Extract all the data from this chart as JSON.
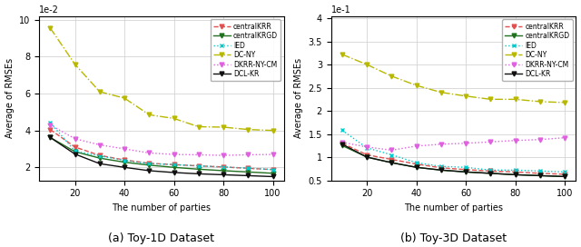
{
  "x": [
    10,
    20,
    30,
    40,
    50,
    60,
    70,
    80,
    90,
    100
  ],
  "left": {
    "caption": "(a) Toy-1D Dataset",
    "ylabel": "Average of RMSEs",
    "xlabel": "The number of parties",
    "scale_exp": -2,
    "ylim": [
      1.3,
      10.2
    ],
    "yticks": [
      2,
      4,
      6,
      8,
      10
    ],
    "series": {
      "centralKRR": {
        "color": "#e05050",
        "linestyle": "--",
        "marker": "v",
        "values": [
          4.05,
          3.1,
          2.65,
          2.4,
          2.22,
          2.15,
          2.08,
          2.02,
          1.95,
          1.88
        ]
      },
      "centralKRGD": {
        "color": "#207020",
        "linestyle": "-",
        "marker": "v",
        "values": [
          3.62,
          2.85,
          2.5,
          2.28,
          2.12,
          2.0,
          1.9,
          1.82,
          1.75,
          1.68
        ]
      },
      "IED": {
        "color": "#00cccc",
        "linestyle": ":",
        "marker": "x",
        "values": [
          4.42,
          2.88,
          2.62,
          2.38,
          2.2,
          2.15,
          2.08,
          2.02,
          1.96,
          1.88
        ]
      },
      "DC-NY": {
        "color": "#b8b800",
        "linestyle": "-.",
        "marker": "v",
        "values": [
          9.55,
          7.58,
          6.1,
          5.75,
          4.85,
          4.65,
          4.2,
          4.18,
          4.05,
          4.0
        ]
      },
      "DKRR-NY-CM": {
        "color": "#e060e0",
        "linestyle": ":",
        "marker": "v",
        "values": [
          4.3,
          3.55,
          3.22,
          3.0,
          2.78,
          2.7,
          2.68,
          2.65,
          2.68,
          2.7
        ]
      },
      "DCL-KR": {
        "color": "#101010",
        "linestyle": "-",
        "marker": "v",
        "values": [
          3.62,
          2.72,
          2.2,
          2.0,
          1.82,
          1.72,
          1.65,
          1.6,
          1.55,
          1.5
        ]
      }
    }
  },
  "right": {
    "caption": "(b) Toy-3D Dataset",
    "ylabel": "Average of RMSEs",
    "xlabel": "The number of parties",
    "scale_exp": -1,
    "ylim": [
      0.5,
      4.05
    ],
    "yticks": [
      0.5,
      1.0,
      1.5,
      2.0,
      2.5,
      3.0,
      3.5,
      4.0
    ],
    "series": {
      "centralKRR": {
        "color": "#e05050",
        "linestyle": "--",
        "marker": "v",
        "values": [
          1.3,
          1.05,
          0.95,
          0.85,
          0.77,
          0.73,
          0.7,
          0.68,
          0.65,
          0.63
        ]
      },
      "centralKRGD": {
        "color": "#207020",
        "linestyle": "-",
        "marker": "v",
        "values": [
          1.25,
          1.0,
          0.88,
          0.78,
          0.72,
          0.68,
          0.65,
          0.62,
          0.6,
          0.58
        ]
      },
      "IED": {
        "color": "#00cccc",
        "linestyle": ":",
        "marker": "x",
        "values": [
          1.58,
          1.2,
          1.05,
          0.88,
          0.8,
          0.78,
          0.72,
          0.72,
          0.7,
          0.68
        ]
      },
      "DC-NY": {
        "color": "#b8b800",
        "linestyle": "-.",
        "marker": "v",
        "values": [
          3.22,
          3.0,
          2.75,
          2.55,
          2.4,
          2.32,
          2.25,
          2.25,
          2.2,
          2.18
        ]
      },
      "DKRR-NY-CM": {
        "color": "#e060e0",
        "linestyle": ":",
        "marker": "v",
        "values": [
          1.32,
          1.22,
          1.15,
          1.24,
          1.28,
          1.3,
          1.33,
          1.36,
          1.38,
          1.42
        ]
      },
      "DCL-KR": {
        "color": "#101010",
        "linestyle": "-",
        "marker": "v",
        "values": [
          1.28,
          1.0,
          0.88,
          0.78,
          0.72,
          0.68,
          0.65,
          0.62,
          0.6,
          0.58
        ]
      }
    }
  },
  "legend_order": [
    "centralKRR",
    "centralKRGD",
    "IED",
    "DC-NY",
    "DKRR-NY-CM",
    "DCL-KR"
  ],
  "caption_fontsize": 9,
  "axis_fontsize": 7,
  "tick_fontsize": 7
}
